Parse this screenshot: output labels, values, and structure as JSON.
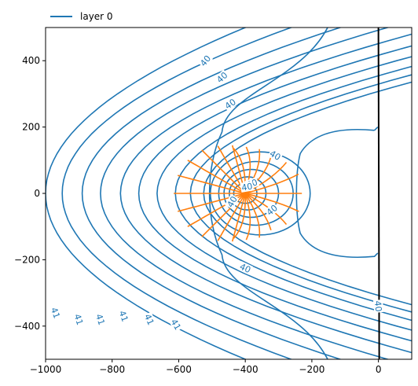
{
  "chart_data": {
    "type": "contour",
    "title": "",
    "xlabel": "",
    "ylabel": "",
    "xlim": [
      -1000,
      100
    ],
    "ylim": [
      -500,
      500
    ],
    "x_ticks": [
      -1000,
      -800,
      -600,
      -400,
      -200,
      0
    ],
    "y_ticks": [
      -400,
      -200,
      0,
      200,
      400
    ],
    "x_tick_labels": [
      "−1000",
      "−800",
      "−600",
      "−400",
      "−200",
      "0"
    ],
    "y_tick_labels": [
      "−400",
      "−200",
      "0",
      "200",
      "400"
    ],
    "legend": {
      "placement": "top-left, above plot",
      "entries": [
        {
          "label": "layer 0",
          "color": "#1f77b4"
        }
      ]
    },
    "well": {
      "x": -400,
      "y": 0,
      "color": "#ff7f0e"
    },
    "river_line": {
      "x": 0,
      "color": "#000000"
    },
    "head_contours": {
      "color": "#1f77b4",
      "outer_arc_x_at_y0": [
        -1000,
        -950,
        -890,
        -835,
        -775,
        -720,
        -665,
        -610,
        -565,
        -525
      ],
      "closed_loops": [
        {
          "center": [
            -400,
            0
          ],
          "rx": 35,
          "ry": 30
        },
        {
          "center": [
            -393,
            0
          ],
          "rx": 55,
          "ry": 50
        },
        {
          "center": [
            -382,
            0
          ],
          "rx": 82,
          "ry": 72
        },
        {
          "center": [
            -368,
            0
          ],
          "rx": 112,
          "ry": 96
        },
        {
          "center": [
            -355,
            0
          ],
          "rx": 150,
          "ry": 125
        }
      ],
      "contour_labels": [
        {
          "text": "40",
          "x": -520,
          "y": 400,
          "angle": -50
        },
        {
          "text": "40",
          "x": -470,
          "y": 350,
          "angle": -42
        },
        {
          "text": "40",
          "x": -445,
          "y": 270,
          "angle": -35
        },
        {
          "text": "40",
          "x": -310,
          "y": 115,
          "angle": 30
        },
        {
          "text": "40",
          "x": -320,
          "y": -50,
          "angle": -40
        },
        {
          "text": "40",
          "x": -440,
          "y": -25,
          "angle": -60
        },
        {
          "text": "40",
          "x": -380,
          "y": 30,
          "angle": -20
        },
        {
          "text": "40",
          "x": -395,
          "y": 20,
          "angle": -10
        },
        {
          "text": "40",
          "x": -400,
          "y": -225,
          "angle": 25
        },
        {
          "text": "40",
          "x": 0,
          "y": -340,
          "angle": 85
        },
        {
          "text": "41",
          "x": -970,
          "y": -360,
          "angle": 70
        },
        {
          "text": "41",
          "x": -900,
          "y": -380,
          "angle": 72
        },
        {
          "text": "41",
          "x": -835,
          "y": -380,
          "angle": 72
        },
        {
          "text": "41",
          "x": -765,
          "y": -370,
          "angle": 70
        },
        {
          "text": "41",
          "x": -688,
          "y": -380,
          "angle": 66
        },
        {
          "text": "41",
          "x": -608,
          "y": -395,
          "angle": 60
        }
      ]
    },
    "streamlines": {
      "color": "#ff7f0e",
      "center": [
        -400,
        0
      ],
      "angles_deg": [
        0,
        16,
        30,
        45,
        60,
        75,
        90,
        105,
        120,
        135,
        150,
        165,
        180,
        195,
        210,
        225,
        240,
        255,
        270,
        285,
        300,
        315,
        330,
        345
      ],
      "lengths": [
        170,
        170,
        155,
        135,
        140,
        140,
        140,
        150,
        165,
        185,
        200,
        210,
        215,
        210,
        200,
        185,
        165,
        150,
        140,
        140,
        140,
        135,
        155,
        170
      ]
    }
  }
}
